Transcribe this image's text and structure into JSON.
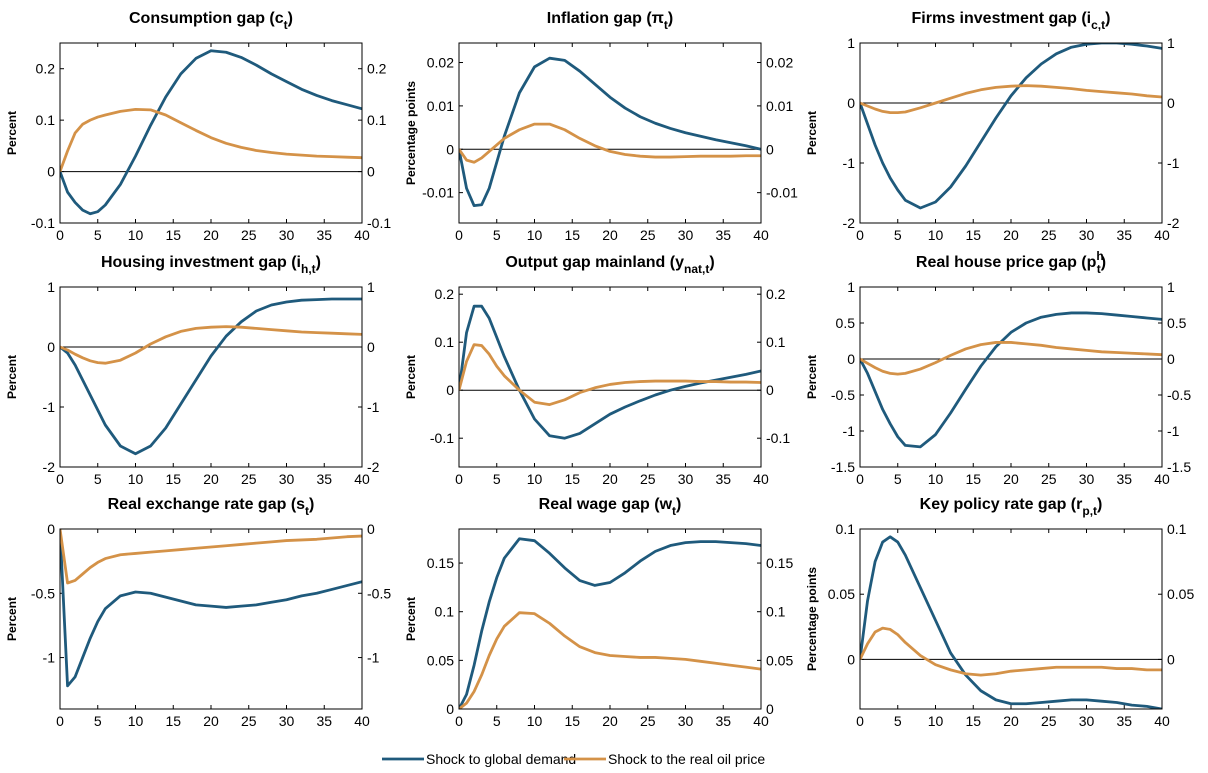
{
  "chart_data": [
    {
      "type": "line",
      "title": "Consumption gap (c",
      "subscript": "t",
      "title_end": ")",
      "ylabel": "Percent",
      "x": [
        0,
        1,
        2,
        3,
        4,
        5,
        6,
        8,
        10,
        12,
        14,
        16,
        18,
        20,
        22,
        24,
        26,
        28,
        30,
        32,
        34,
        36,
        38,
        40
      ],
      "xlim": [
        0,
        40
      ],
      "xticks": [
        0,
        5,
        10,
        15,
        20,
        25,
        30,
        35,
        40
      ],
      "ylim": [
        -0.1,
        0.25
      ],
      "yticks": [
        -0.1,
        0,
        0.1,
        0.2
      ],
      "y2lim": [
        -0.1,
        0.25
      ],
      "y2ticks": [
        -0.1,
        0,
        0.1,
        0.2
      ],
      "series": [
        {
          "name": "Shock to global demand",
          "color": "#1f5a7c",
          "values": [
            0,
            -0.04,
            -0.06,
            -0.075,
            -0.082,
            -0.078,
            -0.065,
            -0.025,
            0.03,
            0.09,
            0.145,
            0.19,
            0.22,
            0.235,
            0.232,
            0.222,
            0.207,
            0.19,
            0.175,
            0.16,
            0.148,
            0.138,
            0.13,
            0.122
          ]
        },
        {
          "name": "Shock to the real oil price",
          "color": "#d49248",
          "values": [
            0,
            0.04,
            0.075,
            0.092,
            0.1,
            0.106,
            0.11,
            0.117,
            0.121,
            0.12,
            0.11,
            0.095,
            0.08,
            0.066,
            0.055,
            0.047,
            0.041,
            0.037,
            0.034,
            0.032,
            0.03,
            0.029,
            0.028,
            0.027
          ]
        }
      ]
    },
    {
      "type": "line",
      "title": "Inflation gap (π",
      "subscript": "t",
      "title_end": ")",
      "ylabel": "Percentage points",
      "x": [
        0,
        1,
        2,
        3,
        4,
        5,
        6,
        8,
        10,
        12,
        14,
        16,
        18,
        20,
        22,
        24,
        26,
        28,
        30,
        32,
        34,
        36,
        38,
        40
      ],
      "xlim": [
        0,
        40
      ],
      "xticks": [
        0,
        5,
        10,
        15,
        20,
        25,
        30,
        35,
        40
      ],
      "ylim": [
        -0.017,
        0.0245
      ],
      "yticks": [
        -0.01,
        0,
        0.01,
        0.02
      ],
      "y2lim": [
        -0.017,
        0.0245
      ],
      "y2ticks": [
        -0.01,
        0,
        0.01,
        0.02
      ],
      "series": [
        {
          "name": "Shock to global demand",
          "color": "#1f5a7c",
          "values": [
            0,
            -0.009,
            -0.013,
            -0.0128,
            -0.009,
            -0.003,
            0.003,
            0.013,
            0.019,
            0.021,
            0.0205,
            0.018,
            0.015,
            0.012,
            0.0095,
            0.0075,
            0.006,
            0.0048,
            0.0038,
            0.003,
            0.0022,
            0.0015,
            0.0008,
            0
          ]
        },
        {
          "name": "Shock to the real oil price",
          "color": "#d49248",
          "values": [
            0,
            -0.0025,
            -0.003,
            -0.002,
            -0.0005,
            0.001,
            0.0025,
            0.0045,
            0.0058,
            0.0058,
            0.0045,
            0.0025,
            0.0008,
            -0.0005,
            -0.0012,
            -0.0016,
            -0.0018,
            -0.0018,
            -0.0017,
            -0.0016,
            -0.0016,
            -0.0016,
            -0.0015,
            -0.0015
          ]
        }
      ]
    },
    {
      "type": "line",
      "title": "Firms investment gap (i",
      "subscript": "c,t",
      "title_end": ")",
      "ylabel": "Percent",
      "x": [
        0,
        1,
        2,
        3,
        4,
        5,
        6,
        8,
        10,
        12,
        14,
        16,
        18,
        20,
        22,
        24,
        26,
        28,
        30,
        32,
        34,
        36,
        38,
        40
      ],
      "xlim": [
        0,
        40
      ],
      "xticks": [
        0,
        5,
        10,
        15,
        20,
        25,
        30,
        35,
        40
      ],
      "ylim": [
        -2,
        1
      ],
      "yticks": [
        -2,
        -1,
        0,
        1
      ],
      "y2lim": [
        -2,
        1
      ],
      "y2ticks": [
        -2,
        -1,
        0,
        1
      ],
      "series": [
        {
          "name": "Shock to global demand",
          "color": "#1f5a7c",
          "values": [
            0,
            -0.35,
            -0.7,
            -1.0,
            -1.25,
            -1.45,
            -1.62,
            -1.75,
            -1.65,
            -1.4,
            -1.05,
            -0.65,
            -0.25,
            0.12,
            0.42,
            0.65,
            0.82,
            0.93,
            0.98,
            1.0,
            1.0,
            0.98,
            0.95,
            0.91
          ]
        },
        {
          "name": "Shock to the real oil price",
          "color": "#d49248",
          "values": [
            0,
            -0.05,
            -0.1,
            -0.14,
            -0.16,
            -0.16,
            -0.15,
            -0.08,
            0,
            0.08,
            0.16,
            0.22,
            0.26,
            0.28,
            0.29,
            0.28,
            0.26,
            0.24,
            0.21,
            0.19,
            0.17,
            0.15,
            0.12,
            0.1
          ]
        }
      ]
    },
    {
      "type": "line",
      "title": "Housing investment gap (i",
      "subscript": "h,t",
      "title_end": ")",
      "ylabel": "Percent",
      "x": [
        0,
        1,
        2,
        3,
        4,
        5,
        6,
        8,
        10,
        12,
        14,
        16,
        18,
        20,
        22,
        24,
        26,
        28,
        30,
        32,
        34,
        36,
        38,
        40
      ],
      "xlim": [
        0,
        40
      ],
      "xticks": [
        0,
        5,
        10,
        15,
        20,
        25,
        30,
        35,
        40
      ],
      "ylim": [
        -2,
        1
      ],
      "yticks": [
        -2,
        -1,
        0,
        1
      ],
      "y2lim": [
        -2,
        1
      ],
      "y2ticks": [
        -2,
        -1,
        0,
        1
      ],
      "series": [
        {
          "name": "Shock to global demand",
          "color": "#1f5a7c",
          "values": [
            0,
            -0.1,
            -0.3,
            -0.55,
            -0.8,
            -1.05,
            -1.3,
            -1.65,
            -1.78,
            -1.65,
            -1.35,
            -0.95,
            -0.55,
            -0.15,
            0.18,
            0.42,
            0.6,
            0.7,
            0.75,
            0.78,
            0.79,
            0.8,
            0.8,
            0.8
          ]
        },
        {
          "name": "Shock to the real oil price",
          "color": "#d49248",
          "values": [
            0,
            -0.05,
            -0.12,
            -0.18,
            -0.23,
            -0.26,
            -0.27,
            -0.22,
            -0.1,
            0.05,
            0.17,
            0.26,
            0.31,
            0.33,
            0.34,
            0.33,
            0.31,
            0.29,
            0.27,
            0.25,
            0.24,
            0.23,
            0.22,
            0.21
          ]
        }
      ]
    },
    {
      "type": "line",
      "title": "Output gap mainland (y",
      "subscript": "nat,t",
      "title_end": ")",
      "ylabel": "Percent",
      "x": [
        0,
        1,
        2,
        3,
        4,
        5,
        6,
        8,
        10,
        12,
        14,
        16,
        18,
        20,
        22,
        24,
        26,
        28,
        30,
        32,
        34,
        36,
        38,
        40
      ],
      "xlim": [
        0,
        40
      ],
      "xticks": [
        0,
        5,
        10,
        15,
        20,
        25,
        30,
        35,
        40
      ],
      "ylim": [
        -0.16,
        0.215
      ],
      "yticks": [
        -0.1,
        0,
        0.1,
        0.2
      ],
      "y2lim": [
        -0.16,
        0.215
      ],
      "y2ticks": [
        -0.1,
        0,
        0.1,
        0.2
      ],
      "series": [
        {
          "name": "Shock to global demand",
          "color": "#1f5a7c",
          "values": [
            0,
            0.12,
            0.175,
            0.175,
            0.15,
            0.11,
            0.07,
            0,
            -0.06,
            -0.095,
            -0.1,
            -0.09,
            -0.07,
            -0.05,
            -0.035,
            -0.022,
            -0.01,
            0,
            0.008,
            0.015,
            0.021,
            0.027,
            0.033,
            0.04
          ]
        },
        {
          "name": "Shock to the real oil price",
          "color": "#d49248",
          "values": [
            0,
            0.06,
            0.095,
            0.093,
            0.075,
            0.05,
            0.03,
            0,
            -0.025,
            -0.03,
            -0.02,
            -0.005,
            0.005,
            0.012,
            0.016,
            0.018,
            0.019,
            0.019,
            0.019,
            0.018,
            0.018,
            0.017,
            0.017,
            0.016
          ]
        }
      ]
    },
    {
      "type": "line",
      "title": "Real house price gap (p",
      "superscript": "h",
      "subscript": "t",
      "title_end": ")",
      "ylabel": "Percent",
      "x": [
        0,
        1,
        2,
        3,
        4,
        5,
        6,
        8,
        10,
        12,
        14,
        16,
        18,
        20,
        22,
        24,
        26,
        28,
        30,
        32,
        34,
        36,
        38,
        40
      ],
      "xlim": [
        0,
        40
      ],
      "xticks": [
        0,
        5,
        10,
        15,
        20,
        25,
        30,
        35,
        40
      ],
      "ylim": [
        -1.5,
        1
      ],
      "yticks": [
        -1.5,
        -1,
        -0.5,
        0,
        0.5,
        1
      ],
      "y2lim": [
        -1.5,
        1
      ],
      "y2ticks": [
        -1.5,
        -1,
        -0.5,
        0,
        0.5,
        1
      ],
      "series": [
        {
          "name": "Shock to global demand",
          "color": "#1f5a7c",
          "values": [
            0,
            -0.2,
            -0.45,
            -0.7,
            -0.9,
            -1.08,
            -1.2,
            -1.22,
            -1.05,
            -0.75,
            -0.42,
            -0.1,
            0.17,
            0.37,
            0.5,
            0.58,
            0.62,
            0.64,
            0.64,
            0.63,
            0.61,
            0.59,
            0.57,
            0.55
          ]
        },
        {
          "name": "Shock to the real oil price",
          "color": "#d49248",
          "values": [
            0,
            -0.06,
            -0.12,
            -0.17,
            -0.2,
            -0.21,
            -0.2,
            -0.14,
            -0.05,
            0.05,
            0.14,
            0.2,
            0.23,
            0.23,
            0.21,
            0.19,
            0.16,
            0.14,
            0.12,
            0.1,
            0.09,
            0.08,
            0.07,
            0.06
          ]
        }
      ]
    },
    {
      "type": "line",
      "title": "Real exchange rate gap (s",
      "subscript": "t",
      "title_end": ")",
      "ylabel": "Percent",
      "x": [
        0,
        1,
        2,
        3,
        4,
        5,
        6,
        8,
        10,
        12,
        14,
        16,
        18,
        20,
        22,
        24,
        26,
        28,
        30,
        32,
        34,
        36,
        38,
        40
      ],
      "xlim": [
        0,
        40
      ],
      "xticks": [
        0,
        5,
        10,
        15,
        20,
        25,
        30,
        35,
        40
      ],
      "ylim": [
        -1.4,
        0
      ],
      "yticks": [
        -1,
        -0.5,
        0
      ],
      "y2lim": [
        -1.4,
        0
      ],
      "y2ticks": [
        -1,
        -0.5,
        0
      ],
      "series": [
        {
          "name": "Shock to global demand",
          "color": "#1f5a7c",
          "values": [
            0,
            -1.22,
            -1.15,
            -1.0,
            -0.85,
            -0.72,
            -0.62,
            -0.52,
            -0.49,
            -0.5,
            -0.53,
            -0.56,
            -0.59,
            -0.6,
            -0.61,
            -0.6,
            -0.59,
            -0.57,
            -0.55,
            -0.52,
            -0.5,
            -0.47,
            -0.44,
            -0.41
          ]
        },
        {
          "name": "Shock to the real oil price",
          "color": "#d49248",
          "values": [
            0,
            -0.42,
            -0.4,
            -0.35,
            -0.3,
            -0.26,
            -0.23,
            -0.2,
            -0.19,
            -0.18,
            -0.17,
            -0.16,
            -0.15,
            -0.14,
            -0.13,
            -0.12,
            -0.11,
            -0.1,
            -0.09,
            -0.085,
            -0.08,
            -0.07,
            -0.06,
            -0.055
          ]
        }
      ]
    },
    {
      "type": "line",
      "title": "Real wage gap (w",
      "subscript": "t",
      "title_end": ")",
      "ylabel": "Percent",
      "x": [
        0,
        1,
        2,
        3,
        4,
        5,
        6,
        8,
        10,
        12,
        14,
        16,
        18,
        20,
        22,
        24,
        26,
        28,
        30,
        32,
        34,
        36,
        38,
        40
      ],
      "xlim": [
        0,
        40
      ],
      "xticks": [
        0,
        5,
        10,
        15,
        20,
        25,
        30,
        35,
        40
      ],
      "ylim": [
        0,
        0.185
      ],
      "yticks": [
        0,
        0.05,
        0.1,
        0.15
      ],
      "y2lim": [
        0,
        0.185
      ],
      "y2ticks": [
        0,
        0.05,
        0.1,
        0.15
      ],
      "series": [
        {
          "name": "Shock to global demand",
          "color": "#1f5a7c",
          "values": [
            0,
            0.015,
            0.045,
            0.08,
            0.11,
            0.135,
            0.155,
            0.175,
            0.173,
            0.16,
            0.145,
            0.132,
            0.127,
            0.13,
            0.14,
            0.152,
            0.162,
            0.168,
            0.171,
            0.172,
            0.172,
            0.171,
            0.17,
            0.168
          ]
        },
        {
          "name": "Shock to the real oil price",
          "color": "#d49248",
          "values": [
            0,
            0.006,
            0.018,
            0.035,
            0.055,
            0.072,
            0.085,
            0.099,
            0.098,
            0.088,
            0.075,
            0.064,
            0.058,
            0.055,
            0.054,
            0.053,
            0.053,
            0.052,
            0.051,
            0.049,
            0.047,
            0.045,
            0.043,
            0.041
          ]
        }
      ]
    },
    {
      "type": "line",
      "title": "Key policy rate gap (r",
      "subscript": "p,t",
      "title_end": ")",
      "ylabel": "Percentage points",
      "x": [
        0,
        1,
        2,
        3,
        4,
        5,
        6,
        8,
        10,
        12,
        14,
        16,
        18,
        20,
        22,
        24,
        26,
        28,
        30,
        32,
        34,
        36,
        38,
        40
      ],
      "xlim": [
        0,
        40
      ],
      "xticks": [
        0,
        5,
        10,
        15,
        20,
        25,
        30,
        35,
        40
      ],
      "ylim": [
        -0.038,
        0.1
      ],
      "yticks": [
        0,
        0.05,
        0.1
      ],
      "y2lim": [
        -0.038,
        0.1
      ],
      "y2ticks": [
        0,
        0.05,
        0.1
      ],
      "series": [
        {
          "name": "Shock to global demand",
          "color": "#1f5a7c",
          "values": [
            0,
            0.045,
            0.075,
            0.09,
            0.094,
            0.09,
            0.08,
            0.055,
            0.03,
            0.005,
            -0.012,
            -0.024,
            -0.031,
            -0.034,
            -0.034,
            -0.033,
            -0.032,
            -0.031,
            -0.031,
            -0.032,
            -0.033,
            -0.035,
            -0.036,
            -0.038
          ]
        },
        {
          "name": "Shock to the real oil price",
          "color": "#d49248",
          "values": [
            0,
            0.012,
            0.021,
            0.024,
            0.023,
            0.019,
            0.013,
            0.003,
            -0.004,
            -0.008,
            -0.011,
            -0.012,
            -0.011,
            -0.009,
            -0.008,
            -0.007,
            -0.006,
            -0.006,
            -0.006,
            -0.006,
            -0.007,
            -0.007,
            -0.008,
            -0.008
          ]
        }
      ]
    }
  ]
}
